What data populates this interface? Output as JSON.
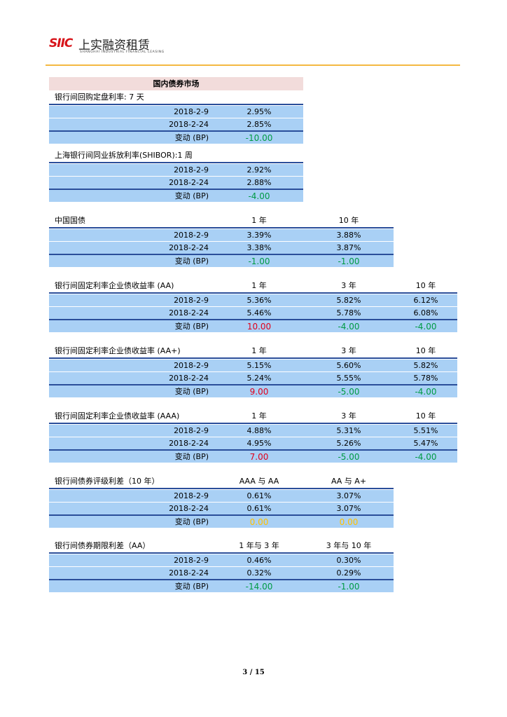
{
  "header": {
    "logo": "SIIC",
    "company": "上实融资租赁",
    "company_en": "SHANGHAI INDUSTRIAL FINANCIAL LEASING"
  },
  "section_title": "国内债券市场",
  "tables": [
    {
      "title": "银行间回购定盘利率: 7 天",
      "columns": [],
      "rows": [
        [
          "2018-2-9",
          "2.95%"
        ],
        [
          "2018-2-24",
          "2.85%"
        ],
        [
          "变动 (BP)",
          "-10.00"
        ]
      ]
    },
    {
      "title": "上海银行间同业拆放利率(SHIBOR):1 周",
      "columns": [],
      "rows": [
        [
          "2018-2-9",
          "2.92%"
        ],
        [
          "2018-2-24",
          "2.88%"
        ],
        [
          "变动 (BP)",
          "-4.00"
        ]
      ]
    },
    {
      "title": "中国国债",
      "columns": [
        "1 年",
        "10 年"
      ],
      "rows": [
        [
          "2018-2-9",
          "3.39%",
          "3.88%"
        ],
        [
          "2018-2-24",
          "3.38%",
          "3.87%"
        ],
        [
          "变动 (BP)",
          "-1.00",
          "-1.00"
        ]
      ]
    },
    {
      "title": "银行间固定利率企业债收益率 (AA)",
      "columns": [
        "1 年",
        "3 年",
        "10 年"
      ],
      "rows": [
        [
          "2018-2-9",
          "5.36%",
          "5.82%",
          "6.12%"
        ],
        [
          "2018-2-24",
          "5.46%",
          "5.78%",
          "6.08%"
        ],
        [
          "变动 (BP)",
          "10.00",
          "-4.00",
          "-4.00"
        ]
      ]
    },
    {
      "title": "银行间固定利率企业债收益率 (AA+)",
      "columns": [
        "1 年",
        "3 年",
        "10 年"
      ],
      "rows": [
        [
          "2018-2-9",
          "5.15%",
          "5.60%",
          "5.82%"
        ],
        [
          "2018-2-24",
          "5.24%",
          "5.55%",
          "5.78%"
        ],
        [
          "变动 (BP)",
          "9.00",
          "-5.00",
          "-4.00"
        ]
      ]
    },
    {
      "title": "银行间固定利率企业债收益率 (AAA)",
      "columns": [
        "1 年",
        "3 年",
        "10 年"
      ],
      "rows": [
        [
          "2018-2-9",
          "4.88%",
          "5.31%",
          "5.51%"
        ],
        [
          "2018-2-24",
          "4.95%",
          "5.26%",
          "5.47%"
        ],
        [
          "变动 (BP)",
          "7.00",
          "-5.00",
          "-4.00"
        ]
      ]
    },
    {
      "title": "银行间债券评级利差（10 年）",
      "columns": [
        "AAA 与 AA",
        "AA 与 A+"
      ],
      "rows": [
        [
          "2018-2-9",
          "0.61%",
          "3.07%"
        ],
        [
          "2018-2-24",
          "0.61%",
          "3.07%"
        ],
        [
          "变动 (BP)",
          "0.00",
          "0.00"
        ]
      ]
    },
    {
      "title": "银行间债券期限利差（AA）",
      "columns": [
        "1 年与 3 年",
        "3 年与 10 年"
      ],
      "rows": [
        [
          "2018-2-9",
          "0.46%",
          "0.30%"
        ],
        [
          "2018-2-24",
          "0.32%",
          "0.29%"
        ],
        [
          "变动 (BP)",
          "-14.00",
          "-1.00"
        ]
      ]
    }
  ],
  "footer": {
    "page": "3 / 15"
  }
}
